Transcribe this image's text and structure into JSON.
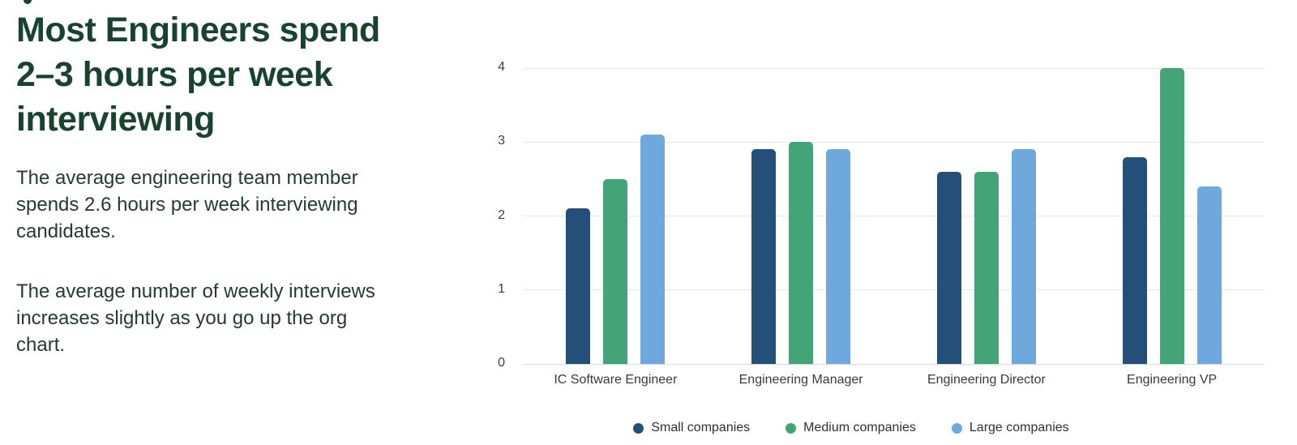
{
  "page": {
    "background": "#ffffff"
  },
  "intro": {
    "heading": "Most Engineers spend\n2–3 hours per week\ninterviewing",
    "paragraph1": "The average engineering team member\nspends 2.6 hours per week interviewing\ncandidates.",
    "paragraph2": "The average number of weekly interviews\nincreases slightly as you go up the org\nchart.",
    "heading_color": "#17432F",
    "body_color": "#243B31"
  },
  "chart_data": {
    "type": "bar",
    "title": "",
    "xlabel": "",
    "ylabel": "",
    "categories": [
      "IC Software Engineer",
      "Engineering Manager",
      "Engineering Director",
      "Engineering VP"
    ],
    "series": [
      {
        "name": "Small companies",
        "color": "#234F78",
        "values": [
          2.1,
          2.9,
          2.6,
          2.8
        ]
      },
      {
        "name": "Medium companies",
        "color": "#43A478",
        "values": [
          2.5,
          3.0,
          2.6,
          4.0
        ]
      },
      {
        "name": "Large companies",
        "color": "#6FA8DC",
        "values": [
          3.1,
          2.9,
          2.9,
          2.4
        ]
      }
    ],
    "ylim": [
      0,
      4
    ],
    "yticks": [
      0,
      1,
      2,
      3,
      4
    ],
    "grid": true,
    "gridline_color": "#e7e7e7",
    "axis_line_color": "#d7d9db",
    "tick_label_color": "#3f3f3f",
    "legend_position": "bottom"
  }
}
